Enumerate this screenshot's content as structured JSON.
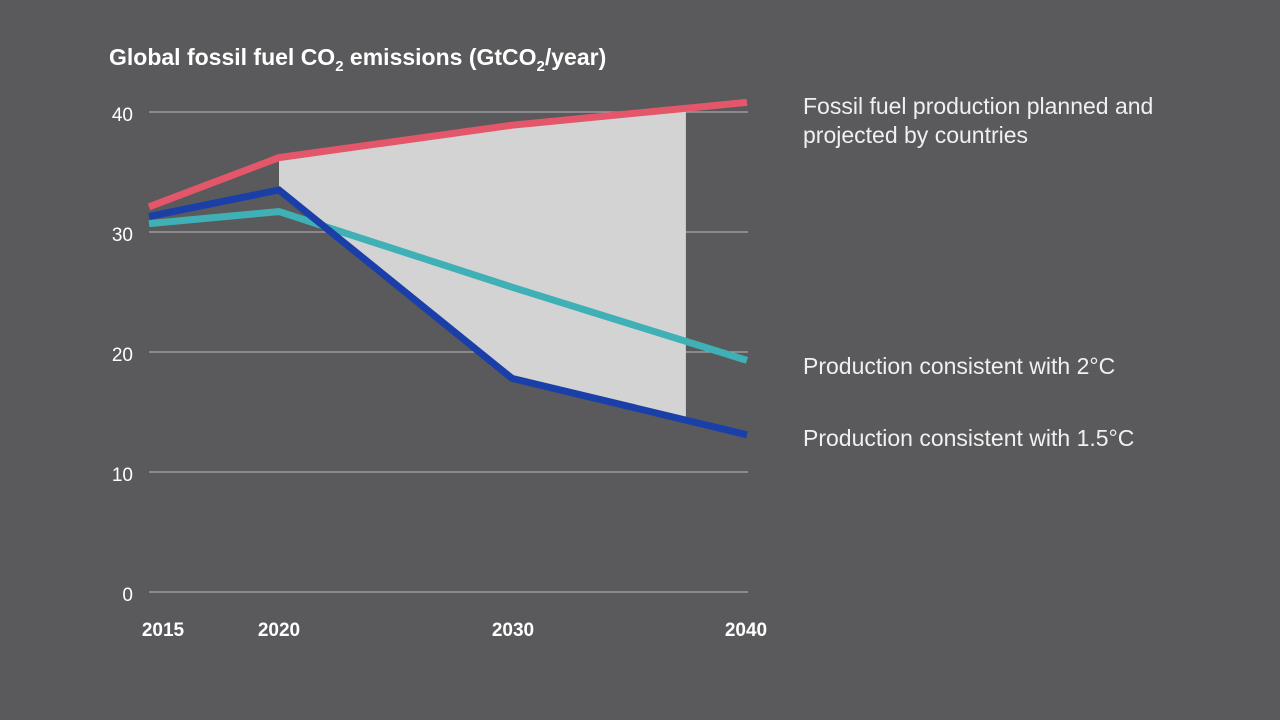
{
  "chart_data": {
    "type": "line",
    "title": {
      "main": "Global fossil fuel CO",
      "sub1": "2",
      "mid": " emissions (GtCO",
      "sub2": "2",
      "end": "/year)"
    },
    "categories": [
      "2015",
      "2020",
      "2030",
      "2040"
    ],
    "x": [
      2015,
      2020,
      2030,
      2040
    ],
    "ylim": [
      0,
      40
    ],
    "yticks": [
      "0",
      "10",
      "20",
      "30",
      "40"
    ],
    "grid": true,
    "series": [
      {
        "name": "Fossil fuel production planned and projected by countries",
        "color": "#e4566a",
        "values": [
          32.1,
          36.2,
          38.9,
          40.8
        ]
      },
      {
        "name": "Production consistent with 2°C",
        "color": "#3fb0b5",
        "values": [
          30.7,
          31.7,
          25.4,
          19.3
        ]
      },
      {
        "name": "Production consistent with 1.5°C",
        "color": "#1a3fa8",
        "values": [
          31.3,
          33.5,
          17.8,
          13.1
        ]
      }
    ],
    "shaded_gap": {
      "color": "#d3d3d3",
      "from_year": 2020,
      "to_year": 2037.4
    }
  }
}
